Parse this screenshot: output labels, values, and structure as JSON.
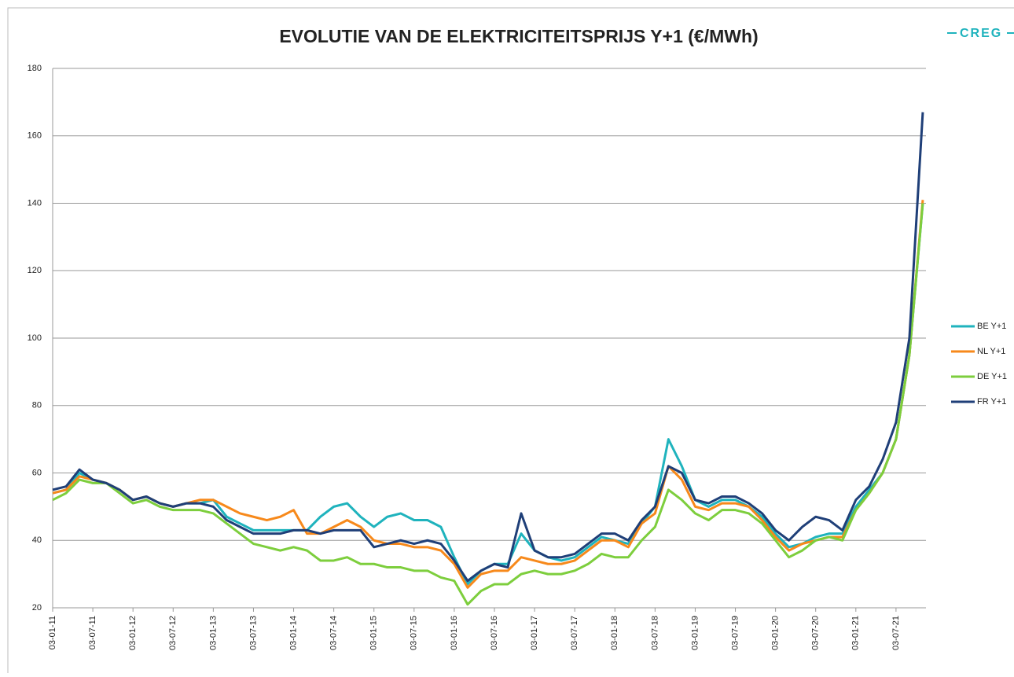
{
  "chart_data": {
    "type": "line",
    "title": "EVOLUTIE VAN DE ELEKTRICITEITSPRIJS Y+1 (€/MWh)",
    "logo": "CREG",
    "categories": [
      "03-01-11",
      null,
      null,
      "03-07-11",
      null,
      null,
      "03-01-12",
      null,
      null,
      "03-07-12",
      null,
      null,
      "03-01-13",
      null,
      null,
      "03-07-13",
      null,
      null,
      "03-01-14",
      null,
      null,
      "03-07-14",
      null,
      null,
      "03-01-15",
      null,
      null,
      "03-07-15",
      null,
      null,
      "03-01-16",
      null,
      null,
      "03-07-16",
      null,
      null,
      "03-01-17",
      null,
      null,
      "03-07-17",
      null,
      null,
      "03-01-18",
      null,
      null,
      "03-07-18",
      null,
      null,
      "03-01-19",
      null,
      null,
      "03-07-19",
      null,
      null,
      "03-01-20",
      null,
      null,
      "03-07-20",
      null,
      null,
      "03-01-21",
      null,
      null,
      "03-07-21",
      null,
      null
    ],
    "series": [
      {
        "name": "BE Y+1",
        "color": "#1fb3bd",
        "values": [
          54,
          55,
          60,
          58,
          57,
          55,
          52,
          53,
          51,
          50,
          51,
          51,
          52,
          47,
          45,
          43,
          43,
          43,
          43,
          43,
          47,
          50,
          51,
          47,
          44,
          47,
          48,
          46,
          46,
          44,
          35,
          27,
          31,
          33,
          33,
          42,
          37,
          35,
          34,
          35,
          38,
          41,
          40,
          39,
          45,
          50,
          70,
          62,
          52,
          50,
          52,
          52,
          50,
          47,
          42,
          38,
          39,
          41,
          42,
          42,
          50,
          55,
          60,
          70,
          95,
          140
        ]
      },
      {
        "name": "NL Y+1",
        "color": "#f7891b",
        "values": [
          54,
          55,
          59,
          58,
          57,
          55,
          52,
          53,
          51,
          50,
          51,
          52,
          52,
          50,
          48,
          47,
          46,
          47,
          49,
          42,
          42,
          44,
          46,
          44,
          40,
          39,
          39,
          38,
          38,
          37,
          33,
          26,
          30,
          31,
          31,
          35,
          34,
          33,
          33,
          34,
          37,
          40,
          40,
          38,
          45,
          48,
          62,
          58,
          50,
          49,
          51,
          51,
          50,
          46,
          41,
          37,
          39,
          40,
          41,
          41,
          49,
          54,
          60,
          70,
          95,
          141
        ]
      },
      {
        "name": "DE Y+1",
        "color": "#7dce3d",
        "values": [
          52,
          54,
          58,
          57,
          57,
          54,
          51,
          52,
          50,
          49,
          49,
          49,
          48,
          45,
          42,
          39,
          38,
          37,
          38,
          37,
          34,
          34,
          35,
          33,
          33,
          32,
          32,
          31,
          31,
          29,
          28,
          21,
          25,
          27,
          27,
          30,
          31,
          30,
          30,
          31,
          33,
          36,
          35,
          35,
          40,
          44,
          55,
          52,
          48,
          46,
          49,
          49,
          48,
          45,
          40,
          35,
          37,
          40,
          41,
          40,
          49,
          54,
          60,
          70,
          95,
          140
        ]
      },
      {
        "name": "FR Y+1",
        "color": "#1f3f78",
        "values": [
          55,
          56,
          61,
          58,
          57,
          55,
          52,
          53,
          51,
          50,
          51,
          51,
          50,
          46,
          44,
          42,
          42,
          42,
          43,
          43,
          42,
          43,
          43,
          43,
          38,
          39,
          40,
          39,
          40,
          39,
          34,
          28,
          31,
          33,
          32,
          48,
          37,
          35,
          35,
          36,
          39,
          42,
          42,
          40,
          46,
          50,
          62,
          60,
          52,
          51,
          53,
          53,
          51,
          48,
          43,
          40,
          44,
          47,
          46,
          43,
          52,
          56,
          64,
          75,
          100,
          167
        ]
      }
    ],
    "ylim": [
      20,
      180
    ],
    "yticks": [
      20,
      40,
      60,
      80,
      100,
      120,
      140,
      160,
      180
    ],
    "grid": true
  }
}
